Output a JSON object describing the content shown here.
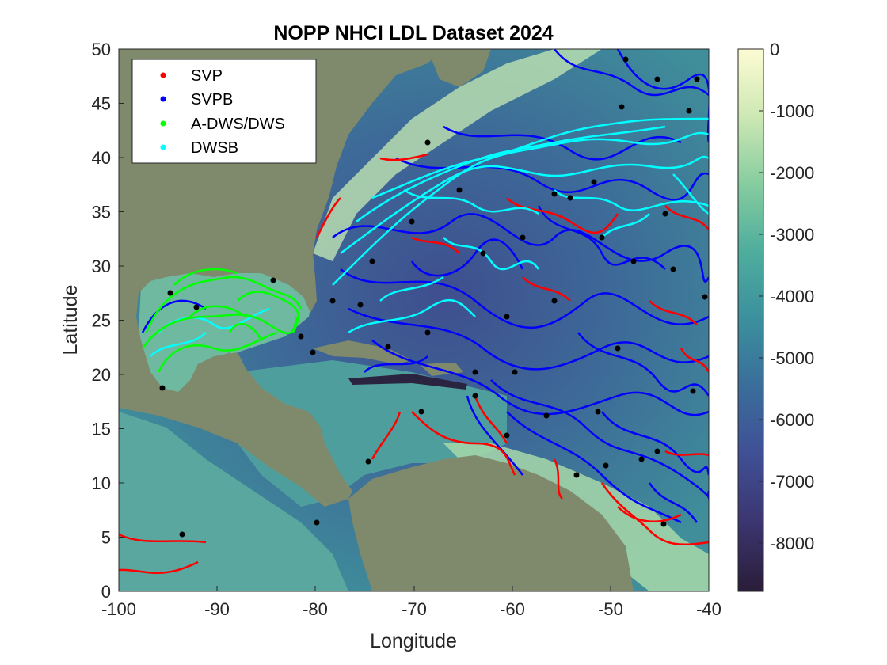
{
  "chart_data": {
    "type": "map",
    "title": "NOPP NHCI LDL Dataset 2024",
    "xlabel": "Longitude",
    "ylabel": "Latitude",
    "xlim": [
      -100,
      -40
    ],
    "ylim": [
      0,
      50
    ],
    "xticks": [
      "-100",
      "-90",
      "-80",
      "-70",
      "-60",
      "-50",
      "-40"
    ],
    "yticks": [
      "0",
      "5",
      "10",
      "15",
      "20",
      "25",
      "30",
      "35",
      "40",
      "45",
      "50"
    ],
    "colorbar": {
      "range": [
        -8800,
        0
      ],
      "ticks": [
        "0",
        "-1000",
        "-2000",
        "-3000",
        "-4000",
        "-5000",
        "-6000",
        "-7000",
        "-8000"
      ]
    },
    "legend": {
      "placement": "top-left",
      "entries": [
        {
          "name": "SVP",
          "color": "#ff0000"
        },
        {
          "name": "SVPB",
          "color": "#0000ff"
        },
        {
          "name": "A-DWS/DWS",
          "color": "#00ff00"
        },
        {
          "name": "DWSB",
          "color": "#00ffff"
        }
      ]
    },
    "land_color": "#7f8a6c"
  }
}
